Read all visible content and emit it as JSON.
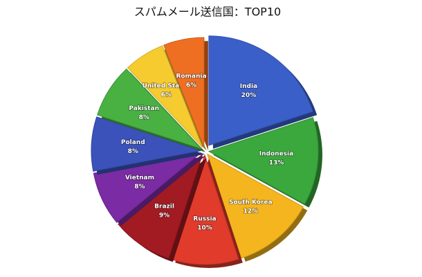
{
  "chart_data": {
    "type": "pie",
    "title": "スパムメール送信国：TOP10",
    "categories": [
      "India",
      "Indonesia",
      "South Korea",
      "Russia",
      "Brazil",
      "Vietnam",
      "Poland",
      "Pakistan",
      "United States",
      "Romania"
    ],
    "values": [
      20,
      13,
      12,
      10,
      9,
      8,
      8,
      8,
      6,
      6
    ],
    "value_labels": [
      "20%",
      "13%",
      "12%",
      "10%",
      "9%",
      "8%",
      "8%",
      "8%",
      "6%",
      "6%"
    ],
    "colors": [
      "#3b5fc9",
      "#3aa83c",
      "#f4b51e",
      "#e03b2b",
      "#a21a22",
      "#7b2ba3",
      "#3b52ba",
      "#48b142",
      "#f5cb2f",
      "#ef6f22"
    ]
  }
}
